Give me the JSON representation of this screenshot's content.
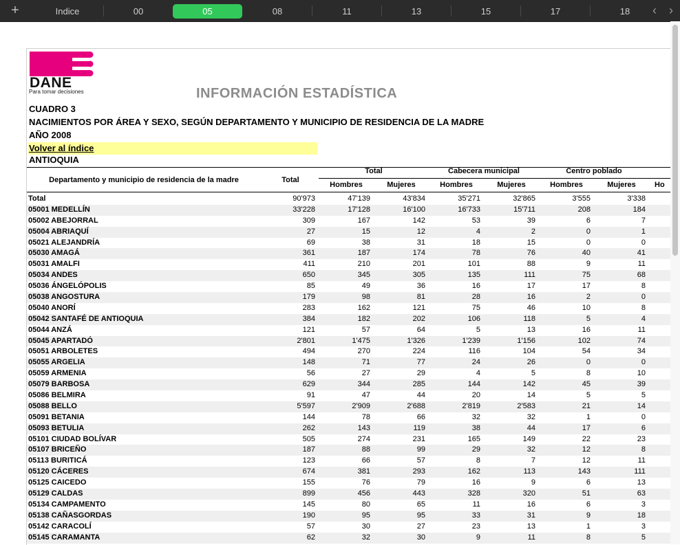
{
  "tabs": {
    "add": "+",
    "items": [
      "Indice",
      "00",
      "05",
      "08",
      "11",
      "13",
      "15",
      "17",
      "18"
    ],
    "active": "05",
    "prev": "‹",
    "next": "›"
  },
  "header": {
    "logo_text": "DANE",
    "logo_tagline": "Para tomar decisiones",
    "info_title": "INFORMACIÓN ESTADÍSTICA",
    "cuadro": "CUADRO 3",
    "subtitle": "NACIMIENTOS POR ÁREA Y SEXO, SEGÚN DEPARTAMENTO Y MUNICIPIO DE RESIDENCIA DE LA MADRE",
    "year": "AÑO 2008",
    "back_link": "Volver al índice",
    "department": "ANTIOQUIA"
  },
  "table": {
    "col_dept": "Departamento y municipio de residencia de la madre",
    "col_total": "Total",
    "groups": [
      "Total",
      "Cabecera municipal",
      "Centro poblado"
    ],
    "sub": [
      "Hombres",
      "Mujeres",
      "Hombres",
      "Mujeres",
      "Hombres",
      "Mujeres",
      "Ho"
    ],
    "rows": [
      [
        "Total",
        "90'973",
        "47'139",
        "43'834",
        "35'271",
        "32'865",
        "3'555",
        "3'338"
      ],
      [
        "05001 MEDELLÍN",
        "33'228",
        "17'128",
        "16'100",
        "16'733",
        "15'711",
        "208",
        "184"
      ],
      [
        "05002 ABEJORRAL",
        "309",
        "167",
        "142",
        "53",
        "39",
        "6",
        "7"
      ],
      [
        "05004 ABRIAQUÍ",
        "27",
        "15",
        "12",
        "4",
        "2",
        "0",
        "1"
      ],
      [
        "05021 ALEJANDRÍA",
        "69",
        "38",
        "31",
        "18",
        "15",
        "0",
        "0"
      ],
      [
        "05030 AMAGÁ",
        "361",
        "187",
        "174",
        "78",
        "76",
        "40",
        "41"
      ],
      [
        "05031 AMALFI",
        "411",
        "210",
        "201",
        "101",
        "88",
        "9",
        "11"
      ],
      [
        "05034 ANDES",
        "650",
        "345",
        "305",
        "135",
        "111",
        "75",
        "68"
      ],
      [
        "05036 ÁNGELÓPOLIS",
        "85",
        "49",
        "36",
        "16",
        "17",
        "17",
        "8"
      ],
      [
        "05038 ANGOSTURA",
        "179",
        "98",
        "81",
        "28",
        "16",
        "2",
        "0"
      ],
      [
        "05040 ANORÍ",
        "283",
        "162",
        "121",
        "75",
        "46",
        "10",
        "8"
      ],
      [
        "05042 SANTAFÉ DE ANTIOQUIA",
        "384",
        "182",
        "202",
        "106",
        "118",
        "5",
        "4"
      ],
      [
        "05044 ANZÁ",
        "121",
        "57",
        "64",
        "5",
        "13",
        "16",
        "11"
      ],
      [
        "05045 APARTADÓ",
        "2'801",
        "1'475",
        "1'326",
        "1'239",
        "1'156",
        "102",
        "74"
      ],
      [
        "05051 ARBOLETES",
        "494",
        "270",
        "224",
        "116",
        "104",
        "54",
        "34"
      ],
      [
        "05055 ARGELIA",
        "148",
        "71",
        "77",
        "24",
        "26",
        "0",
        "0"
      ],
      [
        "05059 ARMENIA",
        "56",
        "27",
        "29",
        "4",
        "5",
        "8",
        "10"
      ],
      [
        "05079 BARBOSA",
        "629",
        "344",
        "285",
        "144",
        "142",
        "45",
        "39"
      ],
      [
        "05086 BELMIRA",
        "91",
        "47",
        "44",
        "20",
        "14",
        "5",
        "5"
      ],
      [
        "05088 BELLO",
        "5'597",
        "2'909",
        "2'688",
        "2'819",
        "2'583",
        "21",
        "14"
      ],
      [
        "05091 BETANIA",
        "144",
        "78",
        "66",
        "32",
        "32",
        "1",
        "0"
      ],
      [
        "05093 BETULIA",
        "262",
        "143",
        "119",
        "38",
        "44",
        "17",
        "6"
      ],
      [
        "05101 CIUDAD BOLÍVAR",
        "505",
        "274",
        "231",
        "165",
        "149",
        "22",
        "23"
      ],
      [
        "05107 BRICEÑO",
        "187",
        "88",
        "99",
        "29",
        "32",
        "12",
        "8"
      ],
      [
        "05113 BURITICÁ",
        "123",
        "66",
        "57",
        "8",
        "7",
        "12",
        "11"
      ],
      [
        "05120 CÁCERES",
        "674",
        "381",
        "293",
        "162",
        "113",
        "143",
        "111"
      ],
      [
        "05125 CAICEDO",
        "155",
        "76",
        "79",
        "16",
        "9",
        "6",
        "13"
      ],
      [
        "05129 CALDAS",
        "899",
        "456",
        "443",
        "328",
        "320",
        "51",
        "63"
      ],
      [
        "05134 CAMPAMENTO",
        "145",
        "80",
        "65",
        "11",
        "16",
        "6",
        "3"
      ],
      [
        "05138 CAÑASGORDAS",
        "190",
        "95",
        "95",
        "33",
        "31",
        "9",
        "18"
      ],
      [
        "05142 CARACOLÍ",
        "57",
        "30",
        "27",
        "23",
        "13",
        "1",
        "3"
      ],
      [
        "05145 CARAMANTA",
        "62",
        "32",
        "30",
        "9",
        "11",
        "8",
        "5"
      ]
    ]
  }
}
